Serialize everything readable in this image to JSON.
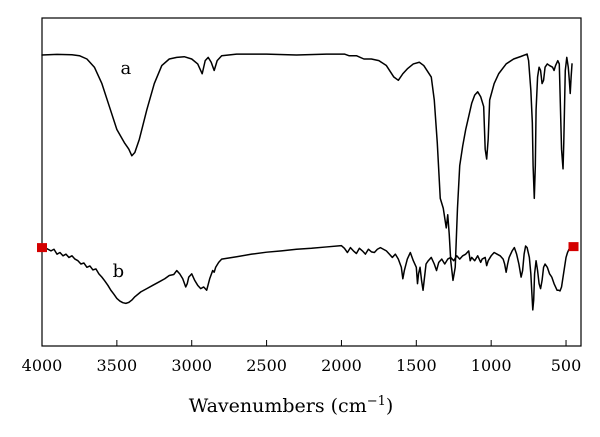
{
  "chart_data": {
    "type": "line",
    "xlabel": "Wavenumbers (cm",
    "xlabel_exponent": "−1",
    "xlabel_close": ")",
    "ylabel": "",
    "xlim": [
      4000,
      400
    ],
    "x_reversed": true,
    "ylim": [
      0,
      100
    ],
    "grid": false,
    "legend": "none",
    "x_ticks": [
      4000,
      3500,
      3000,
      2500,
      2000,
      1500,
      1000,
      500
    ],
    "x_tick_labels": [
      "4000",
      "3500",
      "3000",
      "2500",
      "2000",
      "1500",
      "1000",
      "500"
    ],
    "line_color": "#000000",
    "marker_color": "#d40000",
    "series": [
      {
        "label": "a",
        "label_pos": {
          "x": 3440,
          "y": 83
        },
        "points": [
          [
            4000,
            88.7
          ],
          [
            3900,
            88.9
          ],
          [
            3800,
            88.8
          ],
          [
            3750,
            88.5
          ],
          [
            3700,
            87.5
          ],
          [
            3650,
            85
          ],
          [
            3600,
            80
          ],
          [
            3550,
            73
          ],
          [
            3500,
            66
          ],
          [
            3450,
            62
          ],
          [
            3420,
            60
          ],
          [
            3400,
            58
          ],
          [
            3380,
            59
          ],
          [
            3350,
            63
          ],
          [
            3300,
            72
          ],
          [
            3250,
            80
          ],
          [
            3200,
            85.5
          ],
          [
            3150,
            87.5
          ],
          [
            3100,
            88
          ],
          [
            3050,
            88.2
          ],
          [
            3000,
            87.5
          ],
          [
            2960,
            86
          ],
          [
            2930,
            83
          ],
          [
            2910,
            87
          ],
          [
            2890,
            88
          ],
          [
            2870,
            86.5
          ],
          [
            2850,
            84
          ],
          [
            2830,
            87
          ],
          [
            2800,
            88.5
          ],
          [
            2700,
            89
          ],
          [
            2500,
            89
          ],
          [
            2300,
            88.7
          ],
          [
            2100,
            89
          ],
          [
            1980,
            89
          ],
          [
            1950,
            88.5
          ],
          [
            1900,
            88.5
          ],
          [
            1850,
            87.5
          ],
          [
            1800,
            87.5
          ],
          [
            1750,
            87
          ],
          [
            1700,
            85.5
          ],
          [
            1650,
            82
          ],
          [
            1620,
            81
          ],
          [
            1590,
            83
          ],
          [
            1560,
            84.5
          ],
          [
            1520,
            86
          ],
          [
            1480,
            86.5
          ],
          [
            1450,
            85.5
          ],
          [
            1400,
            82
          ],
          [
            1380,
            75
          ],
          [
            1360,
            62
          ],
          [
            1340,
            45
          ],
          [
            1320,
            42
          ],
          [
            1300,
            36
          ],
          [
            1290,
            40
          ],
          [
            1280,
            34
          ],
          [
            1270,
            26
          ],
          [
            1255,
            20
          ],
          [
            1240,
            24
          ],
          [
            1225,
            42
          ],
          [
            1210,
            55
          ],
          [
            1190,
            61
          ],
          [
            1170,
            66
          ],
          [
            1150,
            70
          ],
          [
            1130,
            74
          ],
          [
            1110,
            76.5
          ],
          [
            1090,
            77.5
          ],
          [
            1070,
            76
          ],
          [
            1050,
            73
          ],
          [
            1040,
            60
          ],
          [
            1030,
            57
          ],
          [
            1020,
            63
          ],
          [
            1010,
            75
          ],
          [
            980,
            80
          ],
          [
            950,
            83
          ],
          [
            900,
            86
          ],
          [
            850,
            87.5
          ],
          [
            800,
            88.3
          ],
          [
            760,
            89
          ],
          [
            750,
            87
          ],
          [
            735,
            78
          ],
          [
            725,
            68
          ],
          [
            720,
            55
          ],
          [
            712,
            45
          ],
          [
            705,
            55
          ],
          [
            700,
            72
          ],
          [
            690,
            82
          ],
          [
            680,
            85
          ],
          [
            670,
            84
          ],
          [
            660,
            80
          ],
          [
            650,
            81
          ],
          [
            640,
            85
          ],
          [
            625,
            86
          ],
          [
            610,
            85.5
          ],
          [
            590,
            85
          ],
          [
            580,
            84
          ],
          [
            570,
            85.5
          ],
          [
            555,
            87
          ],
          [
            545,
            86
          ],
          [
            530,
            60
          ],
          [
            520,
            54
          ],
          [
            515,
            62
          ],
          [
            505,
            84
          ],
          [
            495,
            88
          ],
          [
            485,
            85
          ],
          [
            478,
            81
          ],
          [
            472,
            77
          ],
          [
            466,
            82
          ],
          [
            460,
            86
          ]
        ]
      },
      {
        "label": "b",
        "label_pos": {
          "x": 3490,
          "y": 21
        },
        "points": [
          [
            4000,
            30
          ],
          [
            3980,
            30
          ],
          [
            3960,
            29.5
          ],
          [
            3940,
            29
          ],
          [
            3920,
            29.5
          ],
          [
            3900,
            28
          ],
          [
            3880,
            28.5
          ],
          [
            3860,
            27.5
          ],
          [
            3840,
            28
          ],
          [
            3820,
            27
          ],
          [
            3800,
            27.5
          ],
          [
            3780,
            26.5
          ],
          [
            3760,
            26
          ],
          [
            3740,
            25
          ],
          [
            3720,
            25.3
          ],
          [
            3700,
            24
          ],
          [
            3680,
            24.4
          ],
          [
            3660,
            23.2
          ],
          [
            3640,
            23.5
          ],
          [
            3620,
            22
          ],
          [
            3600,
            21
          ],
          [
            3580,
            19.8
          ],
          [
            3560,
            18.5
          ],
          [
            3540,
            17
          ],
          [
            3520,
            15.8
          ],
          [
            3500,
            14.5
          ],
          [
            3480,
            13.7
          ],
          [
            3460,
            13.2
          ],
          [
            3440,
            13
          ],
          [
            3420,
            13.3
          ],
          [
            3400,
            14
          ],
          [
            3380,
            15
          ],
          [
            3340,
            16.5
          ],
          [
            3300,
            17.5
          ],
          [
            3260,
            18.5
          ],
          [
            3220,
            19.5
          ],
          [
            3180,
            20.5
          ],
          [
            3150,
            21.5
          ],
          [
            3120,
            21.8
          ],
          [
            3100,
            23
          ],
          [
            3080,
            22
          ],
          [
            3060,
            20.5
          ],
          [
            3040,
            18
          ],
          [
            3030,
            19
          ],
          [
            3020,
            21
          ],
          [
            3000,
            22
          ],
          [
            2980,
            20
          ],
          [
            2960,
            18.5
          ],
          [
            2940,
            17.5
          ],
          [
            2920,
            18
          ],
          [
            2900,
            17
          ],
          [
            2880,
            20.5
          ],
          [
            2860,
            23
          ],
          [
            2850,
            22.5
          ],
          [
            2840,
            24
          ],
          [
            2820,
            25.5
          ],
          [
            2800,
            26.5
          ],
          [
            2700,
            27.2
          ],
          [
            2600,
            28
          ],
          [
            2500,
            28.6
          ],
          [
            2400,
            29
          ],
          [
            2300,
            29.5
          ],
          [
            2200,
            29.8
          ],
          [
            2100,
            30.2
          ],
          [
            2000,
            30.6
          ],
          [
            1980,
            29.8
          ],
          [
            1960,
            28.5
          ],
          [
            1940,
            30
          ],
          [
            1920,
            29
          ],
          [
            1900,
            28.2
          ],
          [
            1880,
            29.8
          ],
          [
            1860,
            29
          ],
          [
            1840,
            28
          ],
          [
            1820,
            29.5
          ],
          [
            1800,
            28.7
          ],
          [
            1780,
            28.5
          ],
          [
            1760,
            29.5
          ],
          [
            1740,
            30
          ],
          [
            1720,
            29.5
          ],
          [
            1700,
            29
          ],
          [
            1680,
            28
          ],
          [
            1660,
            27
          ],
          [
            1640,
            28
          ],
          [
            1620,
            26.5
          ],
          [
            1600,
            24
          ],
          [
            1590,
            20.5
          ],
          [
            1580,
            23
          ],
          [
            1560,
            26.5
          ],
          [
            1540,
            28.5
          ],
          [
            1520,
            26
          ],
          [
            1500,
            24
          ],
          [
            1492,
            19
          ],
          [
            1485,
            22
          ],
          [
            1475,
            24
          ],
          [
            1465,
            20
          ],
          [
            1455,
            17
          ],
          [
            1445,
            21
          ],
          [
            1435,
            25
          ],
          [
            1420,
            26
          ],
          [
            1400,
            27
          ],
          [
            1380,
            25
          ],
          [
            1365,
            23
          ],
          [
            1350,
            25.5
          ],
          [
            1330,
            26.5
          ],
          [
            1310,
            25
          ],
          [
            1290,
            26.5
          ],
          [
            1270,
            27
          ],
          [
            1250,
            26
          ],
          [
            1230,
            27.5
          ],
          [
            1210,
            26.5
          ],
          [
            1190,
            27.5
          ],
          [
            1170,
            28
          ],
          [
            1150,
            29
          ],
          [
            1140,
            26
          ],
          [
            1130,
            27
          ],
          [
            1110,
            26
          ],
          [
            1090,
            27.5
          ],
          [
            1070,
            25.5
          ],
          [
            1060,
            26.5
          ],
          [
            1040,
            27
          ],
          [
            1030,
            24.5
          ],
          [
            1020,
            26
          ],
          [
            1000,
            27.5
          ],
          [
            990,
            28
          ],
          [
            980,
            28.5
          ],
          [
            960,
            28
          ],
          [
            940,
            27.5
          ],
          [
            920,
            26.5
          ],
          [
            910,
            25
          ],
          [
            900,
            22.5
          ],
          [
            890,
            25
          ],
          [
            880,
            27
          ],
          [
            860,
            29
          ],
          [
            845,
            30
          ],
          [
            830,
            28
          ],
          [
            815,
            25
          ],
          [
            800,
            21
          ],
          [
            790,
            23
          ],
          [
            780,
            28
          ],
          [
            770,
            30.5
          ],
          [
            760,
            30
          ],
          [
            745,
            27
          ],
          [
            735,
            22
          ],
          [
            728,
            16
          ],
          [
            722,
            11
          ],
          [
            716,
            14
          ],
          [
            710,
            22
          ],
          [
            700,
            26
          ],
          [
            690,
            23
          ],
          [
            680,
            19
          ],
          [
            670,
            17.5
          ],
          [
            660,
            20
          ],
          [
            650,
            24
          ],
          [
            640,
            25
          ],
          [
            625,
            24
          ],
          [
            610,
            22
          ],
          [
            595,
            21
          ],
          [
            580,
            19
          ],
          [
            570,
            18
          ],
          [
            560,
            17
          ],
          [
            550,
            17
          ],
          [
            540,
            16.8
          ],
          [
            530,
            18
          ],
          [
            520,
            21
          ],
          [
            510,
            24
          ],
          [
            500,
            27
          ],
          [
            490,
            28.5
          ],
          [
            480,
            29.5
          ],
          [
            470,
            30
          ],
          [
            460,
            30.2
          ],
          [
            450,
            30.3
          ]
        ],
        "end_markers": [
          [
            4000,
            30
          ],
          [
            450,
            30.3
          ]
        ]
      }
    ]
  }
}
